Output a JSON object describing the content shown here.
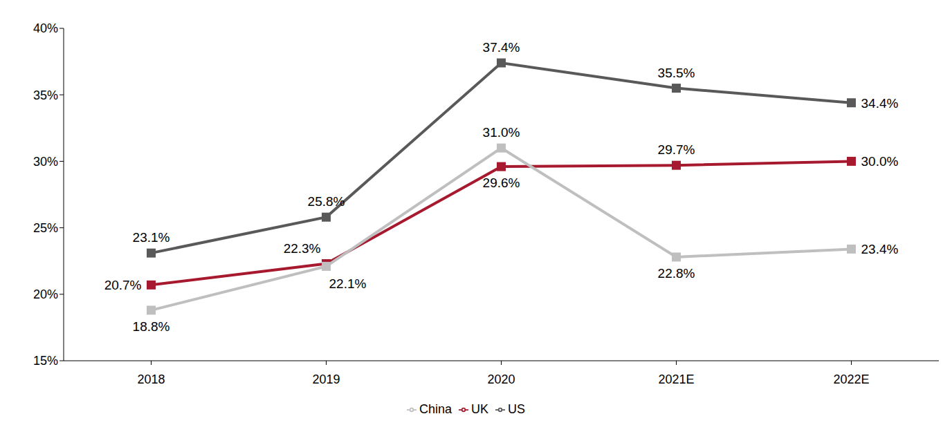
{
  "chart_data": {
    "type": "line",
    "categories": [
      "2018",
      "2019",
      "2020",
      "2021E",
      "2022E"
    ],
    "ylim": [
      15,
      40
    ],
    "yticks": [
      {
        "value": 15,
        "label": "15%"
      },
      {
        "value": 20,
        "label": "20%"
      },
      {
        "value": 25,
        "label": "25%"
      },
      {
        "value": 30,
        "label": "30%"
      },
      {
        "value": 35,
        "label": "35%"
      },
      {
        "value": 40,
        "label": "40%"
      }
    ],
    "grid": false,
    "legend": "bottom",
    "data_labels": true,
    "series": [
      {
        "name": "US",
        "color": "#595959",
        "marker": "square",
        "values": [
          23.1,
          25.8,
          37.4,
          35.5,
          34.4
        ],
        "value_labels": [
          "23.1%",
          "25.8%",
          "37.4%",
          "35.5%",
          "34.4%"
        ]
      },
      {
        "name": "UK",
        "color": "#a6192e",
        "marker": "square",
        "values": [
          20.7,
          22.3,
          29.6,
          29.7,
          30.0
        ],
        "value_labels": [
          "20.7%",
          "22.3%",
          "29.6%",
          "29.7%",
          "30.0%"
        ]
      },
      {
        "name": "China",
        "color": "#bfbfbf",
        "marker": "square",
        "values": [
          18.8,
          22.1,
          31.0,
          22.8,
          23.4
        ],
        "value_labels": [
          "18.8%",
          "22.1%",
          "31.0%",
          "22.8%",
          "23.4%"
        ]
      }
    ]
  }
}
